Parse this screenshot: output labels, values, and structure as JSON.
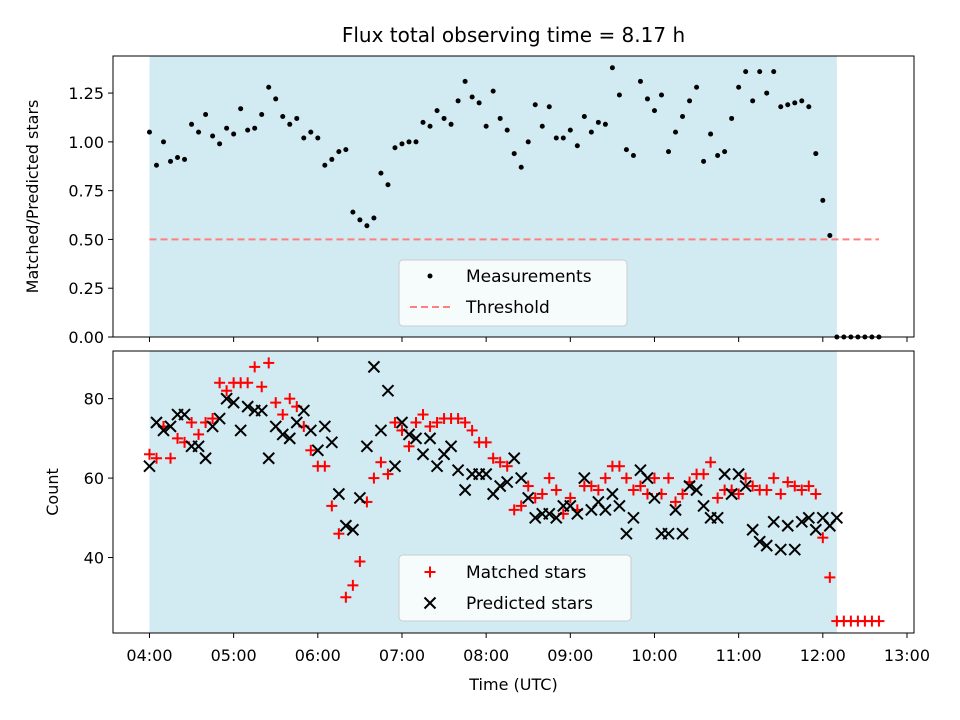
{
  "chart_data": [
    {
      "type": "scatter",
      "title": "Flux total observing time = 8.17 h",
      "ylabel": "Matched/Predicted stars",
      "xlim": [
        "03:34",
        "13:05"
      ],
      "ylim": [
        0,
        1.44
      ],
      "yticks": [
        0.0,
        0.25,
        0.5,
        0.75,
        1.0,
        1.25
      ],
      "ytick_labels": [
        "0.00",
        "0.25",
        "0.50",
        "0.75",
        "1.00",
        "1.25"
      ],
      "observing_window": {
        "start": "04:00",
        "end": "12:10",
        "color": "#add8e6"
      },
      "legend_position": "lower center",
      "series": [
        {
          "name": "Measurements",
          "marker": "dot",
          "color": "#000000",
          "x": [
            "04:00",
            "04:05",
            "04:10",
            "04:15",
            "04:20",
            "04:25",
            "04:30",
            "04:35",
            "04:40",
            "04:45",
            "04:50",
            "04:55",
            "05:00",
            "05:05",
            "05:10",
            "05:15",
            "05:20",
            "05:25",
            "05:30",
            "05:35",
            "05:40",
            "05:45",
            "05:50",
            "05:55",
            "06:00",
            "06:05",
            "06:10",
            "06:15",
            "06:20",
            "06:25",
            "06:30",
            "06:35",
            "06:40",
            "06:45",
            "06:50",
            "06:55",
            "07:00",
            "07:05",
            "07:10",
            "07:15",
            "07:20",
            "07:25",
            "07:30",
            "07:35",
            "07:40",
            "07:45",
            "07:50",
            "07:55",
            "08:00",
            "08:05",
            "08:10",
            "08:15",
            "08:20",
            "08:25",
            "08:30",
            "08:35",
            "08:40",
            "08:45",
            "08:50",
            "08:55",
            "09:00",
            "09:05",
            "09:10",
            "09:15",
            "09:20",
            "09:25",
            "09:30",
            "09:35",
            "09:40",
            "09:45",
            "09:50",
            "09:55",
            "10:00",
            "10:05",
            "10:10",
            "10:15",
            "10:20",
            "10:25",
            "10:30",
            "10:35",
            "10:40",
            "10:45",
            "10:50",
            "10:55",
            "11:00",
            "11:05",
            "11:10",
            "11:15",
            "11:20",
            "11:25",
            "11:30",
            "11:35",
            "11:40",
            "11:45",
            "11:50",
            "11:55",
            "12:00",
            "12:05",
            "12:10",
            "12:15",
            "12:20",
            "12:25",
            "12:30",
            "12:35",
            "12:40"
          ],
          "y": [
            1.05,
            0.88,
            1.0,
            0.9,
            0.92,
            0.91,
            1.09,
            1.05,
            1.14,
            1.03,
            0.99,
            1.07,
            1.04,
            1.17,
            1.06,
            1.07,
            1.14,
            1.28,
            1.22,
            1.13,
            1.09,
            1.12,
            1.02,
            1.05,
            1.02,
            0.88,
            0.91,
            0.95,
            0.96,
            0.64,
            0.6,
            0.57,
            0.61,
            0.84,
            0.78,
            0.97,
            0.99,
            1.0,
            1.0,
            1.1,
            1.08,
            1.16,
            1.12,
            1.09,
            1.21,
            1.31,
            1.23,
            1.2,
            1.08,
            1.26,
            1.12,
            1.06,
            0.94,
            0.87,
            1.0,
            1.19,
            1.08,
            1.18,
            1.02,
            1.02,
            1.06,
            0.98,
            1.13,
            1.05,
            1.1,
            1.09,
            1.38,
            1.24,
            0.96,
            0.93,
            1.31,
            1.22,
            1.16,
            1.24,
            0.95,
            1.05,
            1.13,
            1.21,
            1.28,
            0.9,
            1.04,
            0.93,
            0.95,
            1.12,
            1.28,
            1.36,
            1.21,
            1.36,
            1.25,
            1.36,
            1.18,
            1.19,
            1.2,
            1.21,
            1.18,
            0.94,
            0.7,
            0.52,
            0.0,
            0.0,
            0.0,
            0.0,
            0.0,
            0.0,
            0.0
          ]
        },
        {
          "name": "Threshold",
          "style": "dashed",
          "color": "#ff7f7f",
          "x": [
            "04:00",
            "12:40"
          ],
          "y": [
            0.5,
            0.5
          ]
        }
      ]
    },
    {
      "type": "scatter",
      "xlabel": "Time (UTC)",
      "ylabel": "Count",
      "xlim": [
        "03:34",
        "13:05"
      ],
      "ylim": [
        21,
        92
      ],
      "xticks": [
        "04:00",
        "05:00",
        "06:00",
        "07:00",
        "08:00",
        "09:00",
        "10:00",
        "11:00",
        "12:00",
        "13:00"
      ],
      "yticks": [
        40,
        60,
        80
      ],
      "observing_window": {
        "start": "04:00",
        "end": "12:10",
        "color": "#add8e6"
      },
      "legend_position": "lower center",
      "series": [
        {
          "name": "Matched stars",
          "marker": "plus",
          "color": "#ff0000",
          "x": [
            "04:00",
            "04:05",
            "04:10",
            "04:15",
            "04:20",
            "04:25",
            "04:30",
            "04:35",
            "04:40",
            "04:45",
            "04:50",
            "04:55",
            "05:00",
            "05:05",
            "05:10",
            "05:15",
            "05:20",
            "05:25",
            "05:30",
            "05:35",
            "05:40",
            "05:45",
            "05:50",
            "05:55",
            "06:00",
            "06:05",
            "06:10",
            "06:15",
            "06:20",
            "06:25",
            "06:30",
            "06:35",
            "06:40",
            "06:45",
            "06:50",
            "06:55",
            "07:00",
            "07:05",
            "07:10",
            "07:15",
            "07:20",
            "07:25",
            "07:30",
            "07:35",
            "07:40",
            "07:45",
            "07:50",
            "07:55",
            "08:00",
            "08:05",
            "08:10",
            "08:15",
            "08:20",
            "08:25",
            "08:30",
            "08:35",
            "08:40",
            "08:45",
            "08:50",
            "08:55",
            "09:00",
            "09:05",
            "09:10",
            "09:15",
            "09:20",
            "09:25",
            "09:30",
            "09:35",
            "09:40",
            "09:45",
            "09:50",
            "09:55",
            "10:00",
            "10:05",
            "10:10",
            "10:15",
            "10:20",
            "10:25",
            "10:30",
            "10:35",
            "10:40",
            "10:45",
            "10:50",
            "10:55",
            "11:00",
            "11:05",
            "11:10",
            "11:15",
            "11:20",
            "11:25",
            "11:30",
            "11:35",
            "11:40",
            "11:45",
            "11:50",
            "11:55",
            "12:00",
            "12:05",
            "12:10",
            "12:15",
            "12:20",
            "12:25",
            "12:30",
            "12:35",
            "12:40"
          ],
          "y": [
            66,
            65,
            73,
            65,
            70,
            69,
            74,
            71,
            74,
            75,
            84,
            82,
            84,
            84,
            84,
            88,
            83,
            89,
            79,
            76,
            80,
            78,
            73,
            67,
            63,
            63,
            53,
            46,
            30,
            33,
            39,
            54,
            60,
            64,
            61,
            74,
            72,
            68,
            74,
            76,
            73,
            74,
            75,
            75,
            75,
            74,
            72,
            69,
            69,
            65,
            64,
            63,
            52,
            53,
            58,
            55,
            56,
            60,
            57,
            51,
            55,
            52,
            58,
            58,
            57,
            60,
            63,
            63,
            60,
            57,
            58,
            56,
            60,
            56,
            60,
            54,
            56,
            59,
            61,
            61,
            64,
            55,
            57,
            57,
            56,
            60,
            58,
            57,
            57,
            60,
            56,
            59,
            58,
            57,
            58,
            56,
            45,
            35,
            24,
            24,
            24,
            24,
            24,
            24,
            24
          ]
        },
        {
          "name": "Predicted stars",
          "marker": "x",
          "color": "#000000",
          "x": [
            "04:00",
            "04:05",
            "04:10",
            "04:15",
            "04:20",
            "04:25",
            "04:30",
            "04:35",
            "04:40",
            "04:45",
            "04:50",
            "04:55",
            "05:00",
            "05:05",
            "05:10",
            "05:15",
            "05:20",
            "05:25",
            "05:30",
            "05:35",
            "05:40",
            "05:45",
            "05:50",
            "05:55",
            "06:00",
            "06:05",
            "06:10",
            "06:15",
            "06:20",
            "06:25",
            "06:30",
            "06:35",
            "06:40",
            "06:45",
            "06:50",
            "06:55",
            "07:00",
            "07:05",
            "07:10",
            "07:15",
            "07:20",
            "07:25",
            "07:30",
            "07:35",
            "07:40",
            "07:45",
            "07:50",
            "07:55",
            "08:00",
            "08:05",
            "08:10",
            "08:15",
            "08:20",
            "08:25",
            "08:30",
            "08:35",
            "08:40",
            "08:45",
            "08:50",
            "08:55",
            "09:00",
            "09:05",
            "09:10",
            "09:15",
            "09:20",
            "09:25",
            "09:30",
            "09:35",
            "09:40",
            "09:45",
            "09:50",
            "09:55",
            "10:00",
            "10:05",
            "10:10",
            "10:15",
            "10:20",
            "10:25",
            "10:30",
            "10:35",
            "10:40",
            "10:45",
            "10:50",
            "10:55",
            "11:00",
            "11:05",
            "11:10",
            "11:15",
            "11:20",
            "11:25",
            "11:30",
            "11:35",
            "11:40",
            "11:45",
            "11:50",
            "11:55",
            "12:00",
            "12:05",
            "12:10"
          ],
          "y": [
            63,
            74,
            72,
            73,
            76,
            76,
            68,
            68,
            65,
            73,
            75,
            80,
            79,
            72,
            78,
            77,
            77,
            65,
            73,
            71,
            70,
            74,
            77,
            72,
            67,
            73,
            69,
            56,
            48,
            47,
            55,
            68,
            88,
            72,
            82,
            63,
            74,
            71,
            70,
            66,
            70,
            63,
            66,
            68,
            62,
            57,
            61,
            61,
            61,
            56,
            58,
            59,
            65,
            60,
            55,
            50,
            51,
            51,
            50,
            53,
            53,
            51,
            60,
            52,
            54,
            52,
            56,
            53,
            46,
            50,
            62,
            60,
            55,
            46,
            46,
            52,
            46,
            58,
            57,
            53,
            50,
            50,
            61,
            56,
            61,
            58,
            47,
            44,
            43,
            49,
            42,
            48,
            42,
            49,
            50,
            47,
            50,
            48,
            50
          ]
        }
      ]
    }
  ]
}
